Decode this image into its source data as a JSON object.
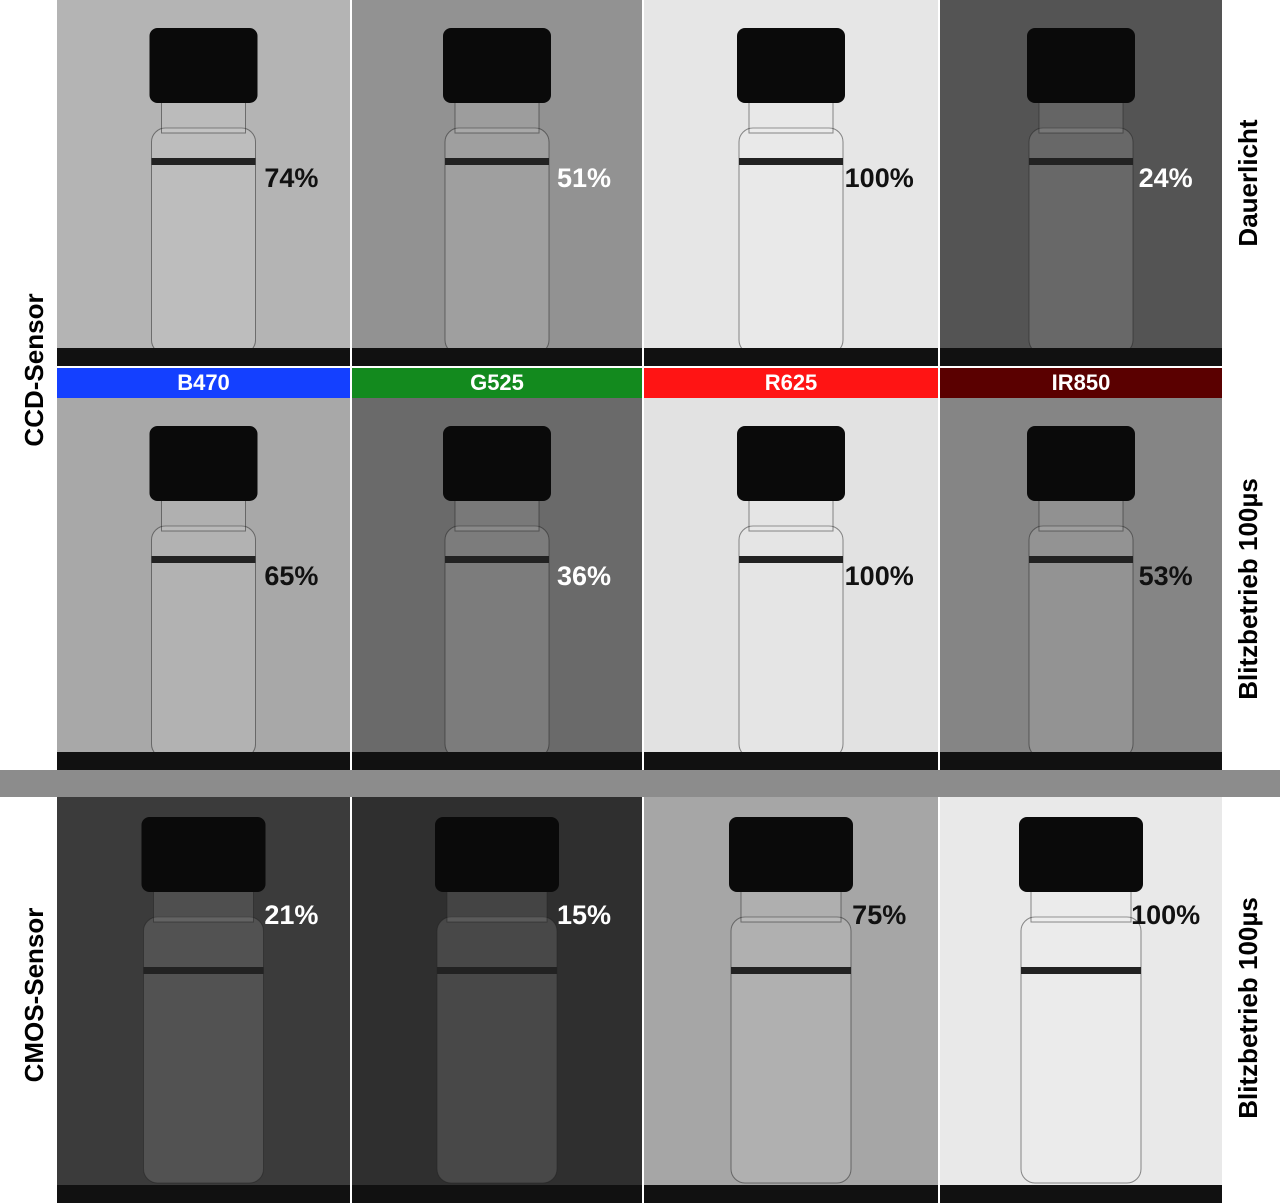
{
  "sensors": [
    "CCD-Sensor",
    "CMOS-Sensor"
  ],
  "columns": [
    "B470",
    "G525",
    "R625",
    "IR850"
  ],
  "rows": [
    {
      "mode": "Dauerlicht",
      "values": [
        "74%",
        "51%",
        "100%",
        "24%"
      ]
    },
    {
      "mode": "Blitzbetrieb 100µs",
      "values": [
        "65%",
        "36%",
        "100%",
        "53%"
      ]
    },
    {
      "mode": "Blitzbetrieb 100µs",
      "values": [
        "21%",
        "15%",
        "75%",
        "100%"
      ]
    }
  ]
}
